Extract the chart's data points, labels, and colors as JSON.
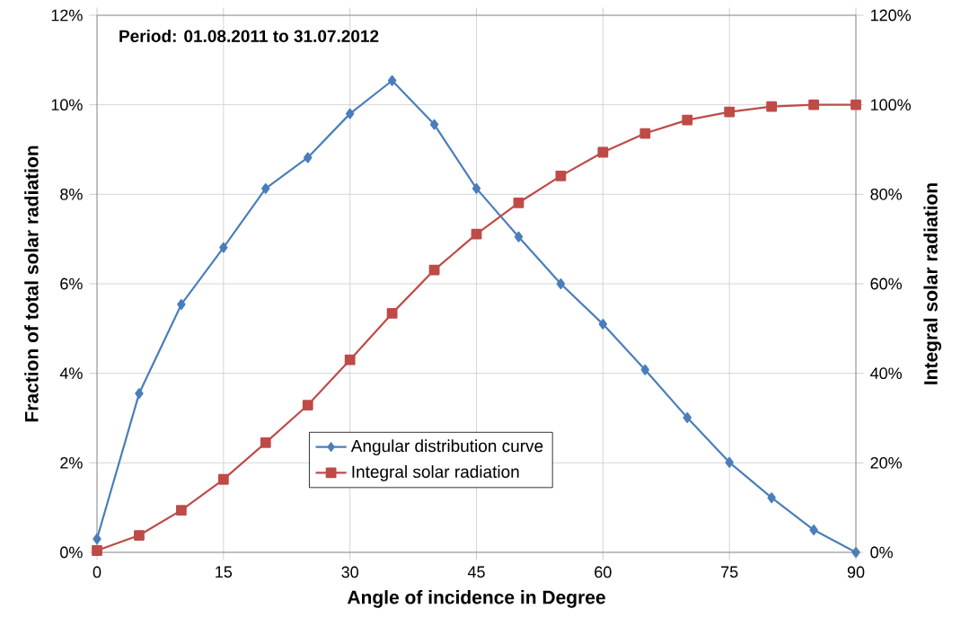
{
  "chart_data": {
    "type": "line",
    "xlabel": "Angle of incidence in Degree",
    "ylabel": "Fraction of total solar radiation",
    "y2label": "Integral solar radiation",
    "annotations": [
      "Period:  01.08.2011  to  31.07.2012"
    ],
    "x": [
      0,
      5,
      10,
      15,
      20,
      25,
      30,
      35,
      40,
      45,
      50,
      55,
      60,
      65,
      70,
      75,
      80,
      85,
      90
    ],
    "series": [
      {
        "name": "Angular distribution curve",
        "color": "#4a7ebb",
        "marker": "diamond",
        "values": [
          0.3,
          3.55,
          5.54,
          6.81,
          8.13,
          8.82,
          9.8,
          10.54,
          9.56,
          8.13,
          7.05,
          6.0,
          5.1,
          4.08,
          3.01,
          2.01,
          1.22,
          0.5,
          0.0
        ]
      },
      {
        "name": "Integral solar radiation",
        "color": "#be4b48",
        "marker": "square",
        "axis": "y2",
        "values": [
          0.4,
          3.8,
          9.4,
          16.3,
          24.5,
          32.9,
          43.0,
          53.4,
          63.1,
          71.1,
          78.1,
          84.1,
          89.4,
          93.6,
          96.6,
          98.4,
          99.6,
          100,
          100
        ]
      }
    ],
    "xlim": [
      0,
      90
    ],
    "xticks": [
      0,
      15,
      30,
      45,
      60,
      75,
      90
    ],
    "ylim": [
      0,
      12
    ],
    "yticks": [
      {
        "value": 0,
        "label": "0%"
      },
      {
        "value": 2,
        "label": "2%"
      },
      {
        "value": 4,
        "label": "4%"
      },
      {
        "value": 6,
        "label": "6%"
      },
      {
        "value": 8,
        "label": "8%"
      },
      {
        "value": 10,
        "label": "10%"
      },
      {
        "value": 12,
        "label": "12%"
      }
    ],
    "y2lim": [
      0,
      120
    ],
    "y2ticks": [
      {
        "value": 0,
        "label": "0%"
      },
      {
        "value": 20,
        "label": "20%"
      },
      {
        "value": 40,
        "label": "40%"
      },
      {
        "value": 60,
        "label": "60%"
      },
      {
        "value": 80,
        "label": "80%"
      },
      {
        "value": 100,
        "label": "100%"
      },
      {
        "value": 120,
        "label": "120%"
      }
    ],
    "grid": true,
    "legend": "bottom",
    "line_style": "solid"
  }
}
